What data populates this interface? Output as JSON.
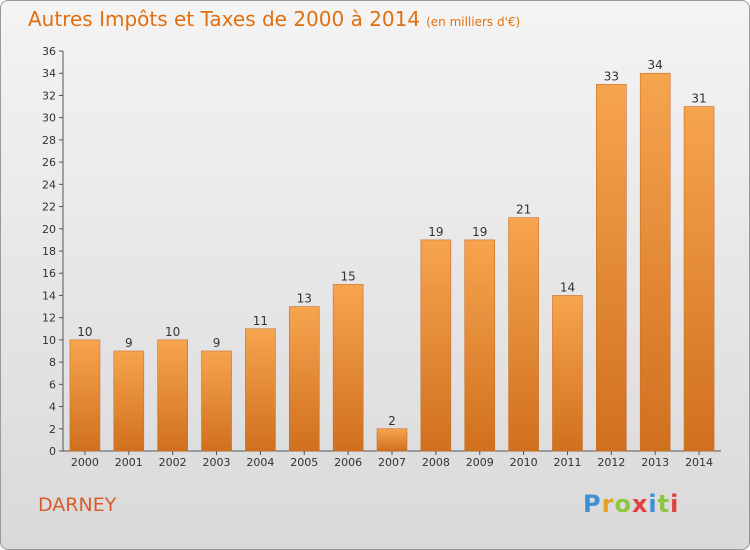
{
  "header": {
    "title": "Autres Impôts et Taxes de 2000 à 2014",
    "unit": "(en milliers d'€)"
  },
  "footer": {
    "commune": "DARNEY",
    "logo_letters": [
      "P",
      "r",
      "o",
      "x",
      "i",
      "t",
      "i"
    ],
    "logo_colors": [
      "#3d8fd6",
      "#e8a020",
      "#8dc63f",
      "#e04040",
      "#3d8fd6",
      "#8dc63f",
      "#e04040"
    ]
  },
  "colors": {
    "bar_top": "#f7a44f",
    "bar_bottom": "#d0701f",
    "title": "#e07010"
  },
  "chart_data": {
    "type": "bar",
    "title": "Autres Impôts et Taxes de 2000 à 2014",
    "subtitle": "(en milliers d'€)",
    "xlabel": "",
    "ylabel": "",
    "categories": [
      "2000",
      "2001",
      "2002",
      "2003",
      "2004",
      "2005",
      "2006",
      "2007",
      "2008",
      "2009",
      "2010",
      "2011",
      "2012",
      "2013",
      "2014"
    ],
    "values": [
      10,
      9,
      10,
      9,
      11,
      13,
      15,
      2,
      19,
      19,
      21,
      14,
      33,
      34,
      31
    ],
    "ylim": [
      0,
      36
    ],
    "yticks": [
      0,
      2,
      4,
      6,
      8,
      10,
      12,
      14,
      16,
      18,
      20,
      22,
      24,
      26,
      28,
      30,
      32,
      34,
      36
    ],
    "grid": false,
    "data_labels": true
  }
}
